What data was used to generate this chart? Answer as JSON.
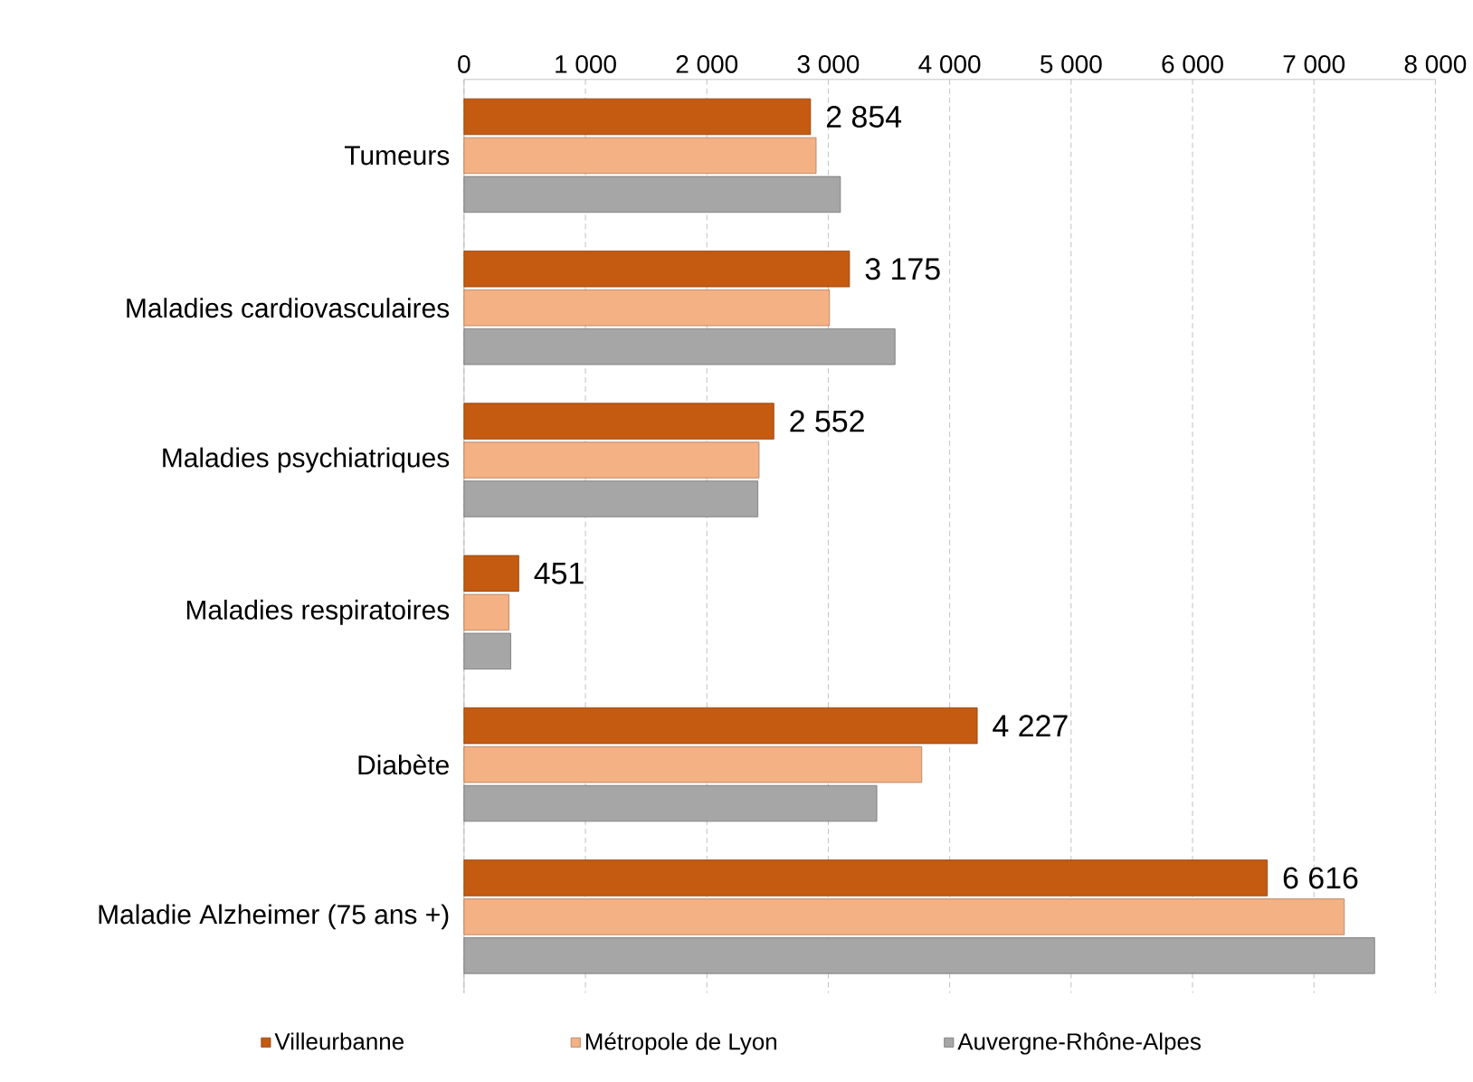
{
  "chart_data": {
    "type": "bar",
    "orientation": "horizontal",
    "categories": [
      "Tumeurs",
      "Maladies cardiovasculaires",
      "Maladies psychiatriques",
      "Maladies respiratoires",
      "Diabète",
      "Maladie Alzheimer (75 ans +)"
    ],
    "series": [
      {
        "name": "Villeurbanne",
        "color": "#c55a11",
        "values": [
          2854,
          3175,
          2552,
          451,
          4227,
          6616
        ],
        "value_labels": [
          "2 854",
          "3 175",
          "2 552",
          "451",
          "4 227",
          "6 616"
        ]
      },
      {
        "name": "Métropole de Lyon",
        "color": "#f4b183",
        "values": [
          2900,
          3010,
          2430,
          370,
          3770,
          7250
        ]
      },
      {
        "name": "Auvergne-Rhône-Alpes",
        "color": "#a6a6a6",
        "values": [
          3100,
          3550,
          2420,
          385,
          3400,
          7500
        ]
      }
    ],
    "xlim": [
      0,
      8000
    ],
    "xticks": [
      0,
      {
        "value": 1000,
        "label": "1 000"
      },
      {
        "value": 2000,
        "label": "2 000"
      },
      {
        "value": 3000,
        "label": "3 000"
      },
      {
        "value": 4000,
        "label": "4 000"
      },
      {
        "value": 5000,
        "label": "5 000"
      },
      {
        "value": 6000,
        "label": "6 000"
      },
      {
        "value": 7000,
        "label": "7 000"
      },
      {
        "value": 8000,
        "label": "8 000"
      }
    ],
    "grid": "x",
    "legend": "bottom"
  }
}
